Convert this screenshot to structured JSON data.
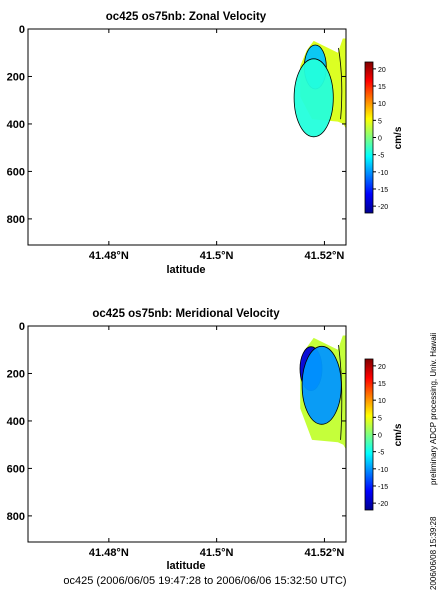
{
  "footer": "oc425 (2006/06/05 19:47:28 to 2006/06/06 15:32:50 UTC)",
  "side_note": "preliminary ADCP processing,  Univ. Hawaii",
  "side_timestamp": "2006/06/08 15:39:28",
  "colorbar": {
    "label": "cm/s",
    "ticks": [
      "20",
      "15",
      "10",
      "5",
      "0",
      "-5",
      "-10",
      "-15",
      "-20"
    ]
  },
  "chart_data": [
    {
      "type": "contour",
      "title": "oc425 os75nb: Zonal Velocity",
      "xlabel": "latitude",
      "ylabel": "",
      "x_ticks": [
        "41.48°N",
        "41.5°N",
        "41.52°N"
      ],
      "y_ticks": [
        "0",
        "200",
        "400",
        "600",
        "800"
      ],
      "xlim": [
        41.465,
        41.524
      ],
      "ylim": [
        910,
        0
      ],
      "units": "cm/s",
      "clim": [
        -22,
        22
      ],
      "data_extent": {
        "lat": [
          41.5155,
          41.524
        ],
        "depth": [
          40,
          420
        ]
      },
      "features": [
        {
          "lat": 41.5183,
          "depth": 160,
          "value": -8
        },
        {
          "lat": 41.518,
          "depth": 290,
          "value": -4
        },
        {
          "lat": 41.523,
          "depth": 220,
          "value": 3
        }
      ]
    },
    {
      "type": "contour",
      "title": "oc425 os75nb: Meridional Velocity",
      "xlabel": "latitude",
      "ylabel": "",
      "x_ticks": [
        "41.48°N",
        "41.5°N",
        "41.52°N"
      ],
      "y_ticks": [
        "0",
        "200",
        "400",
        "600",
        "800"
      ],
      "xlim": [
        41.465,
        41.524
      ],
      "ylim": [
        910,
        0
      ],
      "units": "cm/s",
      "clim": [
        -22,
        22
      ],
      "data_extent": {
        "lat": [
          41.5155,
          41.524
        ],
        "depth": [
          40,
          520
        ]
      },
      "features": [
        {
          "lat": 41.5175,
          "depth": 180,
          "value": -18
        },
        {
          "lat": 41.5195,
          "depth": 250,
          "value": -10
        },
        {
          "lat": 41.523,
          "depth": 250,
          "value": 2
        }
      ]
    }
  ]
}
